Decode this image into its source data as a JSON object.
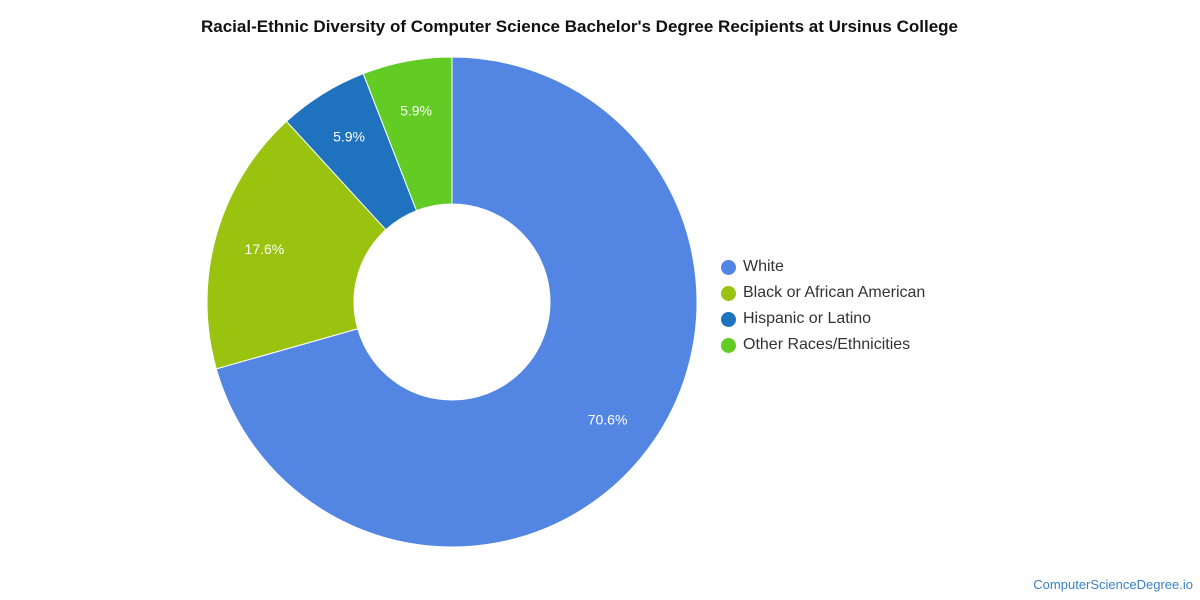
{
  "chart_data": {
    "type": "pie",
    "title": "Racial-Ethnic Diversity of Computer Science Bachelor's Degree Recipients at Ursinus College",
    "donut": true,
    "legend_position": "right",
    "categories": [
      "White",
      "Black or African American",
      "Hispanic or Latino",
      "Other Races/Ethnicities"
    ],
    "values": [
      70.6,
      17.6,
      5.9,
      5.9
    ],
    "labels": [
      "70.6%",
      "17.6%",
      "5.9%",
      "5.9%"
    ],
    "colors": [
      "#5286e2",
      "#99c30f",
      "#1f73be",
      "#62cc25"
    ]
  },
  "credit": "ComputerScienceDegree.io"
}
